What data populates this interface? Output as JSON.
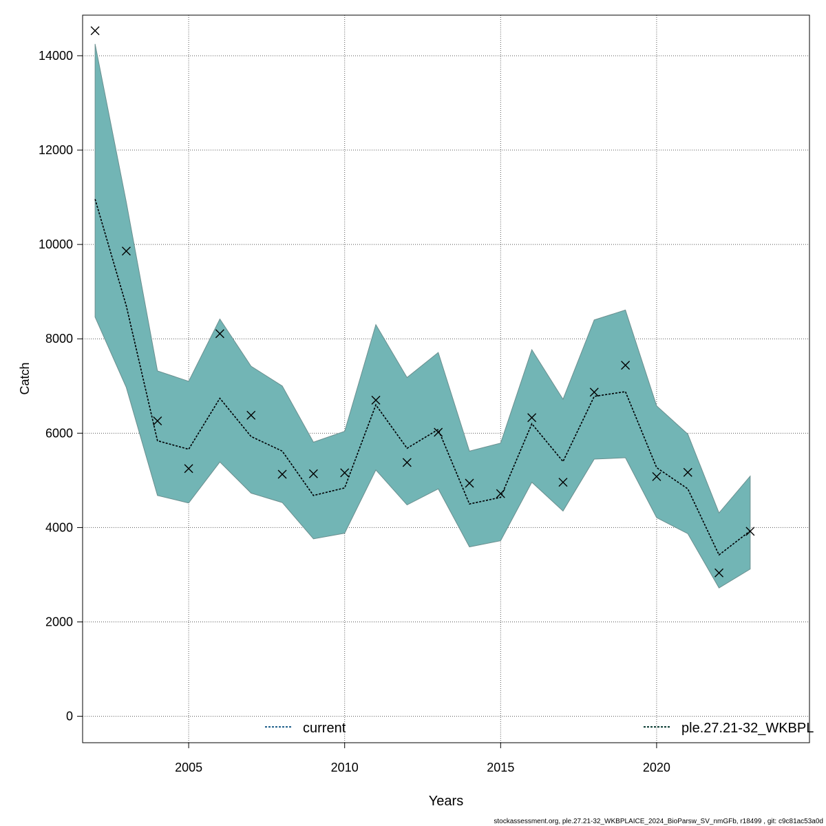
{
  "chart_data": {
    "type": "line",
    "xlabel": "Years",
    "ylabel": "Catch",
    "xlim": [
      2001.6,
      2024.9
    ],
    "ylim": [
      -560,
      14860
    ],
    "x_ticks": [
      2005,
      2010,
      2015,
      2020
    ],
    "y_ticks": [
      0,
      2000,
      4000,
      6000,
      8000,
      10000,
      12000,
      14000
    ],
    "grid": true,
    "x": [
      2002,
      2003,
      2004,
      2005,
      2006,
      2007,
      2008,
      2009,
      2010,
      2011,
      2012,
      2013,
      2014,
      2015,
      2016,
      2017,
      2018,
      2019,
      2020,
      2021,
      2022,
      2023
    ],
    "series": [
      {
        "name": "current",
        "kind": "line",
        "color": "#1f5f8b",
        "values": [
          10960,
          8700,
          5840,
          5660,
          6740,
          5930,
          5620,
          4680,
          4840,
          6600,
          5680,
          6080,
          4500,
          4640,
          6200,
          5400,
          6780,
          6880,
          5270,
          4820,
          3420,
          3930
        ]
      },
      {
        "name": "ple.27.21-32_WKBPL",
        "kind": "line",
        "color": "#0a3d33",
        "values": [
          10960,
          8700,
          5840,
          5660,
          6740,
          5930,
          5620,
          4680,
          4840,
          6600,
          5680,
          6080,
          4500,
          4640,
          6200,
          5400,
          6780,
          6880,
          5270,
          4820,
          3420,
          3930
        ]
      }
    ],
    "band": {
      "color": "#72b5b5",
      "upper": [
        14250,
        10900,
        7320,
        7100,
        8420,
        7420,
        7000,
        5810,
        6040,
        8300,
        7180,
        7710,
        5620,
        5790,
        7770,
        6720,
        8400,
        8610,
        6580,
        5980,
        4310,
        5090
      ],
      "lower": [
        8460,
        6970,
        4680,
        4520,
        5390,
        4730,
        4530,
        3760,
        3880,
        5220,
        4480,
        4820,
        3590,
        3720,
        4960,
        4350,
        5450,
        5480,
        4210,
        3870,
        2720,
        3120
      ]
    },
    "observed": {
      "marker": "x",
      "values": [
        14530,
        9860,
        6260,
        5250,
        8110,
        6380,
        5130,
        5140,
        5160,
        6700,
        5380,
        6020,
        4940,
        4720,
        6330,
        4960,
        6870,
        7440,
        5080,
        5170,
        3040,
        3920
      ]
    },
    "legend": [
      {
        "label": "current",
        "position": "bottom-center",
        "style": "dotted",
        "color": "#1f5f8b"
      },
      {
        "label": "ple.27.21-32_WKBPL",
        "position": "bottom-right",
        "style": "dotted",
        "color": "#0a3d33"
      }
    ],
    "footer": "stockassessment.org, ple.27.21-32_WKBPLAICE_2024_BioParsw_SV_nmGFb, r18499 , git: c9c81ac53a0d"
  }
}
